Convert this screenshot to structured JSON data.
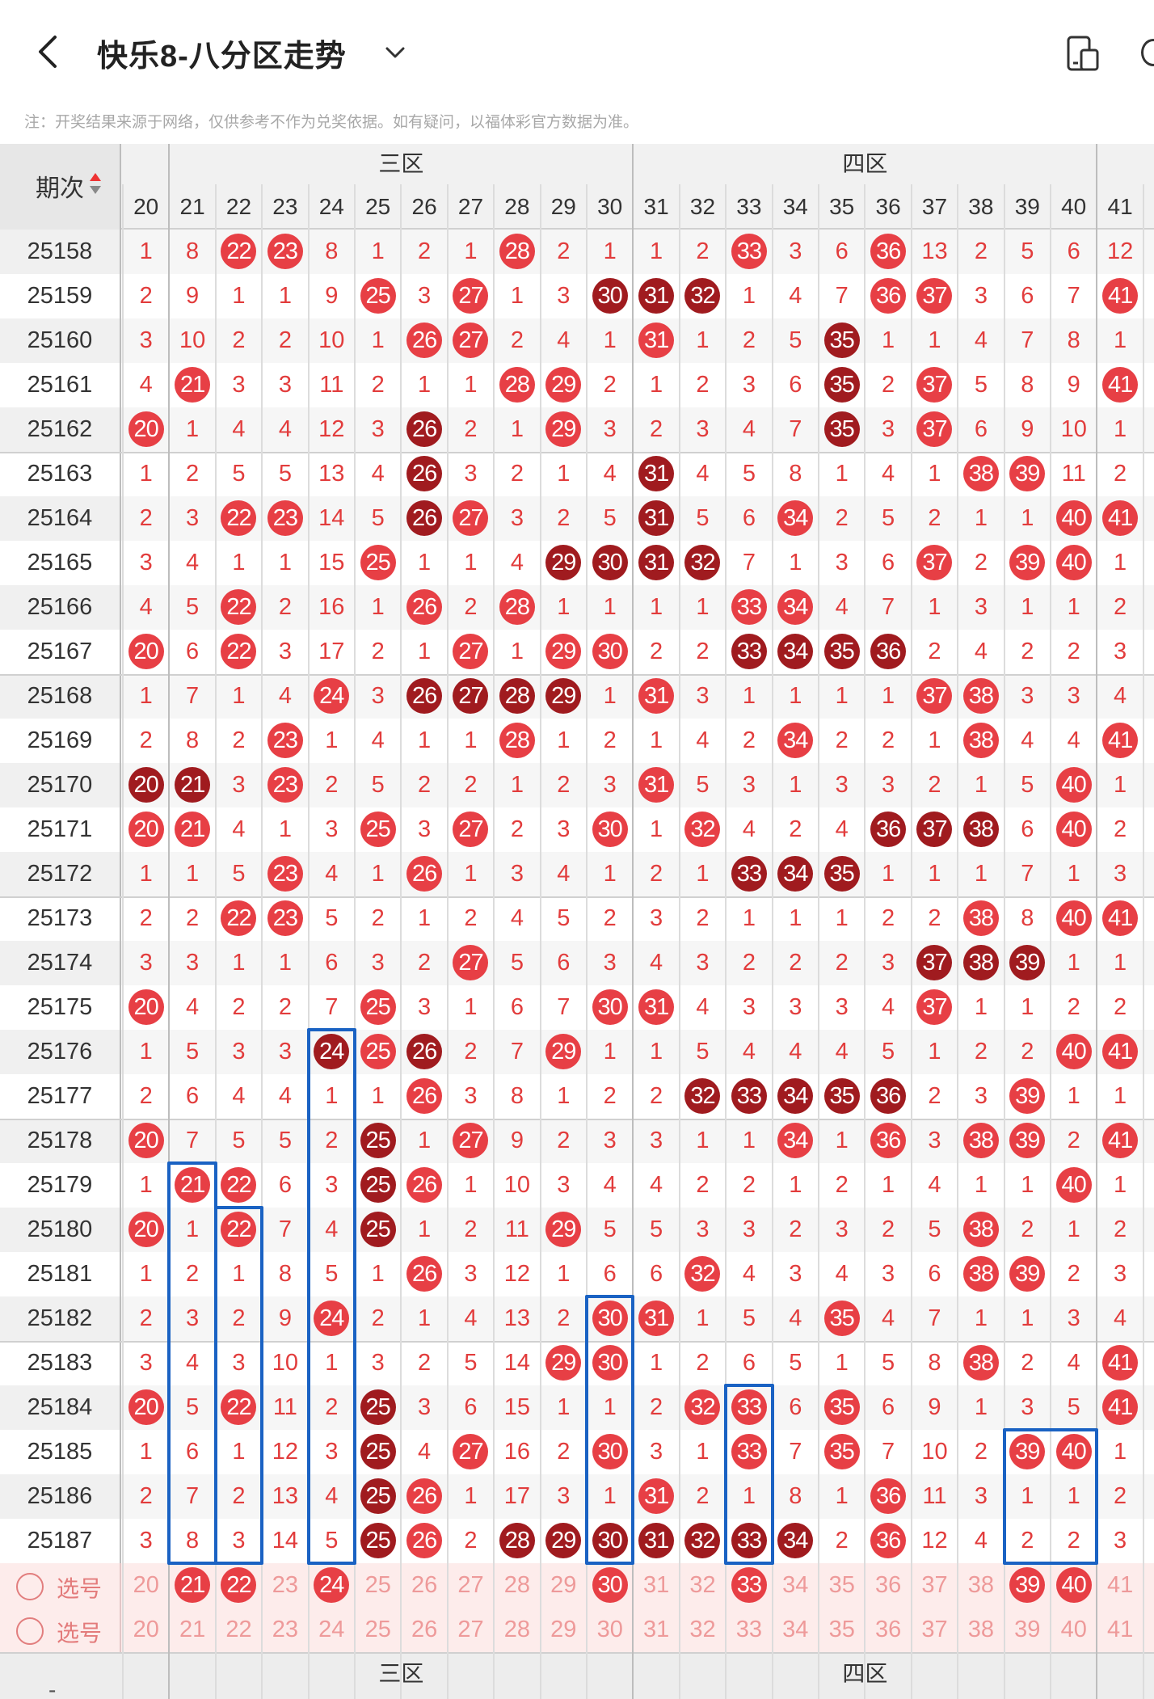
{
  "header": {
    "title": "快乐8-八分区走势"
  },
  "notice": "注：开奖结果来源于网络，仅供参考不作为兑奖依据。如有疑问，以福体彩官方数据为准。",
  "table": {
    "period_label": "期次",
    "zones": [
      "三区",
      "四区"
    ],
    "columns": [
      "20",
      "21",
      "22",
      "23",
      "24",
      "25",
      "26",
      "27",
      "28",
      "29",
      "30",
      "31",
      "32",
      "33",
      "34",
      "35",
      "36",
      "37",
      "38",
      "39",
      "40",
      "41"
    ],
    "rows": [
      {
        "p": "25158",
        "v": [
          "1",
          "8",
          "22",
          "23",
          "8",
          "1",
          "2",
          "1",
          "28",
          "2",
          "1",
          "1",
          "2",
          "33",
          "3",
          "6",
          "36",
          "13",
          "2",
          "5",
          "6",
          "12"
        ]
      },
      {
        "p": "25159",
        "v": [
          "2",
          "9",
          "1",
          "1",
          "9",
          "25",
          "3",
          "27",
          "1",
          "3",
          "30",
          "31",
          "32",
          "1",
          "4",
          "7",
          "36",
          "37",
          "3",
          "6",
          "7",
          "41"
        ]
      },
      {
        "p": "25160",
        "v": [
          "3",
          "10",
          "2",
          "2",
          "10",
          "1",
          "26",
          "27",
          "2",
          "4",
          "1",
          "31",
          "1",
          "2",
          "5",
          "35",
          "1",
          "1",
          "4",
          "7",
          "8",
          "1"
        ]
      },
      {
        "p": "25161",
        "v": [
          "4",
          "21",
          "3",
          "3",
          "11",
          "2",
          "1",
          "1",
          "28",
          "29",
          "2",
          "1",
          "2",
          "3",
          "6",
          "35",
          "2",
          "37",
          "5",
          "8",
          "9",
          "41"
        ]
      },
      {
        "p": "25162",
        "v": [
          "20",
          "1",
          "4",
          "4",
          "12",
          "3",
          "26",
          "2",
          "1",
          "29",
          "3",
          "2",
          "3",
          "4",
          "7",
          "35",
          "3",
          "37",
          "6",
          "9",
          "10",
          "1"
        ]
      },
      {
        "p": "25163",
        "v": [
          "1",
          "2",
          "5",
          "5",
          "13",
          "4",
          "26",
          "3",
          "2",
          "1",
          "4",
          "31",
          "4",
          "5",
          "8",
          "1",
          "4",
          "1",
          "38",
          "39",
          "11",
          "2"
        ]
      },
      {
        "p": "25164",
        "v": [
          "2",
          "3",
          "22",
          "23",
          "14",
          "5",
          "26",
          "27",
          "3",
          "2",
          "5",
          "31",
          "5",
          "6",
          "34",
          "2",
          "5",
          "2",
          "1",
          "1",
          "40",
          "41"
        ]
      },
      {
        "p": "25165",
        "v": [
          "3",
          "4",
          "1",
          "1",
          "15",
          "25",
          "1",
          "1",
          "4",
          "29",
          "30",
          "31",
          "32",
          "7",
          "1",
          "3",
          "6",
          "37",
          "2",
          "39",
          "40",
          "1"
        ]
      },
      {
        "p": "25166",
        "v": [
          "4",
          "5",
          "22",
          "2",
          "16",
          "1",
          "26",
          "2",
          "28",
          "1",
          "1",
          "1",
          "1",
          "33",
          "34",
          "4",
          "7",
          "1",
          "3",
          "1",
          "1",
          "2"
        ]
      },
      {
        "p": "25167",
        "v": [
          "20",
          "6",
          "22",
          "3",
          "17",
          "2",
          "1",
          "27",
          "1",
          "29",
          "30",
          "2",
          "2",
          "33",
          "34",
          "35",
          "36",
          "2",
          "4",
          "2",
          "2",
          "3"
        ]
      },
      {
        "p": "25168",
        "v": [
          "1",
          "7",
          "1",
          "4",
          "24",
          "3",
          "26",
          "27",
          "28",
          "29",
          "1",
          "31",
          "3",
          "1",
          "1",
          "1",
          "1",
          "37",
          "38",
          "3",
          "3",
          "4"
        ]
      },
      {
        "p": "25169",
        "v": [
          "2",
          "8",
          "2",
          "23",
          "1",
          "4",
          "1",
          "1",
          "28",
          "1",
          "2",
          "1",
          "4",
          "2",
          "34",
          "2",
          "2",
          "1",
          "38",
          "4",
          "4",
          "41"
        ]
      },
      {
        "p": "25170",
        "v": [
          "20",
          "21",
          "3",
          "23",
          "2",
          "5",
          "2",
          "2",
          "1",
          "2",
          "3",
          "31",
          "5",
          "3",
          "1",
          "3",
          "3",
          "2",
          "1",
          "5",
          "40",
          "1"
        ]
      },
      {
        "p": "25171",
        "v": [
          "20",
          "21",
          "4",
          "1",
          "3",
          "25",
          "3",
          "27",
          "2",
          "3",
          "30",
          "1",
          "32",
          "4",
          "2",
          "4",
          "36",
          "37",
          "38",
          "6",
          "40",
          "2"
        ]
      },
      {
        "p": "25172",
        "v": [
          "1",
          "1",
          "5",
          "23",
          "4",
          "1",
          "26",
          "1",
          "3",
          "4",
          "1",
          "2",
          "1",
          "33",
          "34",
          "35",
          "1",
          "1",
          "1",
          "7",
          "1",
          "3"
        ]
      },
      {
        "p": "25173",
        "v": [
          "2",
          "2",
          "22",
          "23",
          "5",
          "2",
          "1",
          "2",
          "4",
          "5",
          "2",
          "3",
          "2",
          "1",
          "1",
          "1",
          "2",
          "2",
          "38",
          "8",
          "40",
          "41"
        ]
      },
      {
        "p": "25174",
        "v": [
          "3",
          "3",
          "1",
          "1",
          "6",
          "3",
          "2",
          "27",
          "5",
          "6",
          "3",
          "4",
          "3",
          "2",
          "2",
          "2",
          "3",
          "37",
          "38",
          "39",
          "1",
          "1"
        ]
      },
      {
        "p": "25175",
        "v": [
          "20",
          "4",
          "2",
          "2",
          "7",
          "25",
          "3",
          "1",
          "6",
          "7",
          "30",
          "31",
          "4",
          "3",
          "3",
          "3",
          "4",
          "37",
          "1",
          "1",
          "2",
          "2"
        ]
      },
      {
        "p": "25176",
        "v": [
          "1",
          "5",
          "3",
          "3",
          "24",
          "25",
          "26",
          "2",
          "7",
          "29",
          "1",
          "1",
          "5",
          "4",
          "4",
          "4",
          "5",
          "1",
          "2",
          "2",
          "40",
          "41"
        ]
      },
      {
        "p": "25177",
        "v": [
          "2",
          "6",
          "4",
          "4",
          "1",
          "1",
          "26",
          "3",
          "8",
          "1",
          "2",
          "2",
          "32",
          "33",
          "34",
          "35",
          "36",
          "2",
          "3",
          "39",
          "1",
          "1"
        ]
      },
      {
        "p": "25178",
        "v": [
          "20",
          "7",
          "5",
          "5",
          "2",
          "25",
          "1",
          "27",
          "9",
          "2",
          "3",
          "3",
          "1",
          "1",
          "34",
          "1",
          "36",
          "3",
          "38",
          "39",
          "2",
          "41"
        ]
      },
      {
        "p": "25179",
        "v": [
          "1",
          "21",
          "22",
          "6",
          "3",
          "25",
          "26",
          "1",
          "10",
          "3",
          "4",
          "4",
          "2",
          "2",
          "1",
          "2",
          "1",
          "4",
          "1",
          "1",
          "40",
          "1"
        ]
      },
      {
        "p": "25180",
        "v": [
          "20",
          "1",
          "22",
          "7",
          "4",
          "25",
          "1",
          "2",
          "11",
          "29",
          "5",
          "5",
          "3",
          "3",
          "2",
          "3",
          "2",
          "5",
          "38",
          "2",
          "1",
          "2"
        ]
      },
      {
        "p": "25181",
        "v": [
          "1",
          "2",
          "1",
          "8",
          "5",
          "1",
          "26",
          "3",
          "12",
          "1",
          "6",
          "6",
          "32",
          "4",
          "3",
          "4",
          "3",
          "6",
          "38",
          "39",
          "2",
          "3"
        ]
      },
      {
        "p": "25182",
        "v": [
          "2",
          "3",
          "2",
          "9",
          "24",
          "2",
          "1",
          "4",
          "13",
          "2",
          "30",
          "31",
          "1",
          "5",
          "4",
          "35",
          "4",
          "7",
          "1",
          "1",
          "3",
          "4"
        ]
      },
      {
        "p": "25183",
        "v": [
          "3",
          "4",
          "3",
          "10",
          "1",
          "3",
          "2",
          "5",
          "14",
          "29",
          "30",
          "1",
          "2",
          "6",
          "5",
          "1",
          "5",
          "8",
          "38",
          "2",
          "4",
          "41"
        ]
      },
      {
        "p": "25184",
        "v": [
          "20",
          "5",
          "22",
          "11",
          "2",
          "25",
          "3",
          "6",
          "15",
          "1",
          "1",
          "2",
          "32",
          "33",
          "6",
          "35",
          "6",
          "9",
          "1",
          "3",
          "5",
          "41"
        ]
      },
      {
        "p": "25185",
        "v": [
          "1",
          "6",
          "1",
          "12",
          "3",
          "25",
          "4",
          "27",
          "16",
          "2",
          "30",
          "3",
          "1",
          "33",
          "7",
          "35",
          "7",
          "10",
          "2",
          "39",
          "40",
          "1"
        ]
      },
      {
        "p": "25186",
        "v": [
          "2",
          "7",
          "2",
          "13",
          "4",
          "25",
          "26",
          "1",
          "17",
          "3",
          "1",
          "31",
          "2",
          "1",
          "8",
          "1",
          "36",
          "11",
          "3",
          "1",
          "1",
          "2"
        ]
      },
      {
        "p": "25187",
        "v": [
          "3",
          "8",
          "3",
          "14",
          "5",
          "25",
          "26",
          "2",
          "28",
          "29",
          "30",
          "31",
          "32",
          "33",
          "34",
          "2",
          "36",
          "12",
          "4",
          "2",
          "2",
          "3"
        ]
      }
    ],
    "dark_hits": [
      "25159-30",
      "25159-31",
      "25159-32",
      "25160-35",
      "25161-35",
      "25162-26",
      "25162-35",
      "25163-26",
      "25163-31",
      "25164-26",
      "25164-31",
      "25165-29",
      "25165-30",
      "25165-31",
      "25165-32",
      "25167-33",
      "25167-34",
      "25167-35",
      "25167-36",
      "25168-26",
      "25168-27",
      "25168-28",
      "25168-29",
      "25170-20",
      "25170-21",
      "25171-36",
      "25171-37",
      "25171-38",
      "25172-33",
      "25172-34",
      "25172-35",
      "25174-37",
      "25174-38",
      "25174-39",
      "25176-24",
      "25176-26",
      "25177-32",
      "25177-33",
      "25177-34",
      "25177-35",
      "25177-36",
      "25178-25",
      "25179-25",
      "25180-25",
      "25184-25",
      "25185-25",
      "25186-25",
      "25187-25",
      "25187-28",
      "25187-29",
      "25187-30",
      "25187-31",
      "25187-32",
      "25187-33",
      "25187-34"
    ],
    "select_rows": [
      {
        "label": "选号",
        "selected": [
          "21",
          "22",
          "24",
          "30",
          "33",
          "39",
          "40"
        ]
      },
      {
        "label": "选号",
        "selected": []
      }
    ],
    "footer_zones": [
      "三区",
      "四区"
    ],
    "footer_left": "-"
  }
}
